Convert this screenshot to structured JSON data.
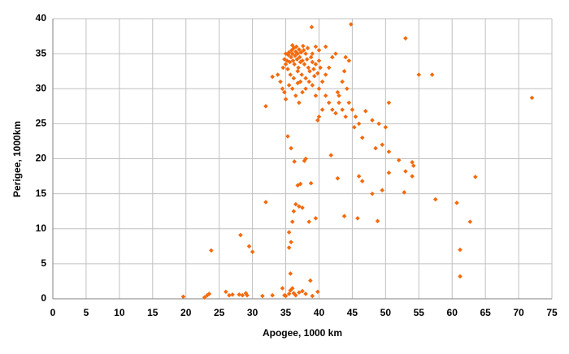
{
  "chart_data": {
    "type": "scatter",
    "xlabel": "Apogee, 1000 km",
    "ylabel": "Perigee, 1000km",
    "color": "#f26b0f",
    "grid": true,
    "xlim": [
      0,
      75
    ],
    "xticks": [
      0,
      5,
      10,
      15,
      20,
      25,
      30,
      35,
      40,
      45,
      50,
      55,
      60,
      65,
      70,
      75
    ],
    "ylim": [
      0,
      40
    ],
    "yticks": [
      0,
      5,
      10,
      15,
      20,
      25,
      30,
      35,
      40
    ],
    "x": [
      44.8,
      38.9,
      53,
      55,
      57,
      72,
      32,
      50.5,
      49,
      50,
      48.5,
      49.5,
      50.5,
      52,
      54,
      54.2,
      53,
      50.5,
      54,
      63.5,
      46,
      46.5,
      48,
      49.5,
      52.8,
      57.5,
      60.7,
      62.7,
      48.8,
      45.8,
      43.8,
      41.8,
      42.8,
      35.3,
      35.8,
      36.3,
      37.8,
      38,
      38.8,
      36.8,
      37.2,
      32,
      36.2,
      36.5,
      37,
      37.5,
      36,
      38.5,
      39.5,
      35.5,
      35.8,
      35.5,
      61.2,
      61.2,
      23.8,
      28.2,
      29.5,
      30,
      38.7,
      35.7,
      19.6,
      22.8,
      23.2,
      23.5,
      26,
      26.5,
      27,
      28,
      28.5,
      29,
      29.2,
      31.5,
      33,
      34.5,
      35,
      35.5,
      35.7,
      36,
      36.2,
      36.5,
      37,
      37.5,
      38,
      39,
      39.8,
      34.8,
      33,
      33.8,
      34.2,
      34.5,
      34.8,
      35,
      36,
      36.5,
      37,
      37.5,
      38,
      38.5,
      39,
      39.5,
      40,
      40.5,
      41,
      41.5,
      42,
      42.5,
      40,
      41,
      39.5,
      39,
      40.2,
      41,
      41.5,
      42,
      42.5,
      43,
      43.5,
      44,
      44.5,
      45,
      45.5,
      46,
      46.5,
      45.3,
      44,
      43.8,
      43.5,
      44.5,
      40,
      39.8,
      40.5,
      42.8,
      43,
      44.2,
      47,
      48,
      35,
      35.2,
      35.4,
      35.5,
      35.6,
      35.8,
      35.9,
      36,
      36.1,
      36.2,
      36.3,
      36.4,
      36.5,
      36.6,
      36.7,
      36.8,
      36.9,
      37,
      37.1,
      37.2,
      37.3,
      37.5,
      37.6,
      37.8,
      38,
      38.2,
      38.4,
      38.6,
      38.8,
      39,
      39.2,
      39.5,
      39.8,
      40,
      35.3,
      35.7,
      36.2,
      36.8,
      37.4,
      38,
      34.8,
      34.6,
      35,
      37.7,
      36,
      38.3,
      35.5,
      36.8,
      37.2,
      39.3
    ],
    "values": [
      39.2,
      38.8,
      37.2,
      32,
      32,
      28.7,
      27.5,
      28,
      25,
      24.5,
      21.5,
      22,
      21,
      19.8,
      19.5,
      19,
      18.2,
      18,
      17.5,
      17.4,
      17.5,
      16.8,
      15,
      15.5,
      15.2,
      14.2,
      13.7,
      11,
      11.1,
      11.5,
      11.8,
      20.5,
      17.2,
      23.2,
      21.5,
      19.6,
      19.7,
      20,
      16.5,
      16.2,
      16.4,
      13.8,
      12.5,
      13.5,
      13.2,
      13,
      11,
      11,
      11.5,
      9.5,
      8.1,
      7.3,
      7,
      3.2,
      6.9,
      9.1,
      7.5,
      6.7,
      2.6,
      3.6,
      0.3,
      0.2,
      0.5,
      0.7,
      1,
      0.5,
      0.6,
      0.6,
      0.5,
      0.8,
      0.5,
      0.4,
      0.5,
      1.5,
      0.4,
      0.7,
      1.2,
      1.5,
      0.8,
      0.5,
      0.9,
      1.1,
      0.7,
      0.4,
      1,
      0.5,
      31.7,
      32,
      31,
      30,
      29.5,
      28.5,
      30,
      29,
      28,
      29.5,
      30,
      31,
      30.5,
      29,
      30,
      31,
      32,
      33,
      34.5,
      35,
      35.5,
      36,
      36,
      35,
      33,
      29,
      28,
      27,
      26.5,
      28,
      27,
      26,
      28,
      27,
      26,
      25,
      23,
      24.5,
      34.5,
      32.5,
      31,
      34,
      26,
      25.5,
      27,
      29.5,
      29,
      30,
      26.8,
      25.5,
      33.5,
      34,
      34.8,
      35.2,
      33.8,
      34.5,
      35.5,
      35,
      34,
      35.8,
      33.5,
      34.7,
      35.3,
      36,
      34.2,
      35,
      33,
      35.6,
      34.5,
      33.8,
      35.2,
      34,
      36.1,
      33.5,
      35,
      34.2,
      33,
      32.5,
      34.5,
      33.8,
      32.8,
      33.5,
      32.2,
      34,
      32.8,
      32,
      31.5,
      32.5,
      32,
      31.5,
      34.2,
      33,
      35,
      35.5,
      36.2,
      35.8,
      30.5,
      30.8,
      31,
      31.8
    ]
  }
}
